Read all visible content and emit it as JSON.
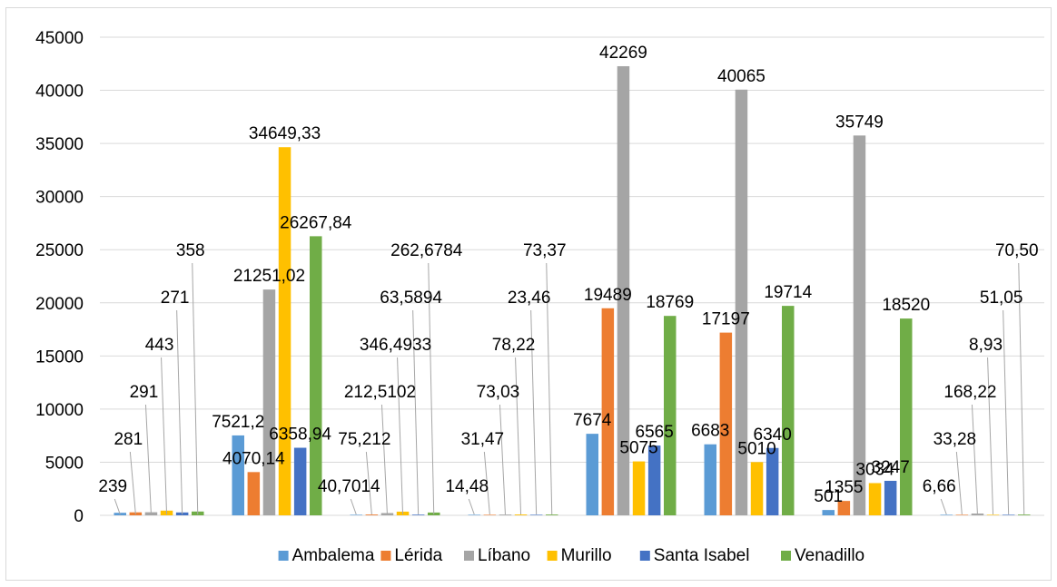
{
  "chart_data": {
    "type": "bar",
    "title": "",
    "xlabel": "",
    "ylabel": "",
    "ylim": [
      0,
      45000
    ],
    "yticks": [
      0,
      5000,
      10000,
      15000,
      20000,
      25000,
      30000,
      35000,
      40000,
      45000
    ],
    "grid": true,
    "legend_position": "bottom",
    "categories": [
      "",
      "",
      "",
      "",
      "",
      "",
      "",
      ""
    ],
    "series": [
      {
        "name": "Ambalema",
        "color": "#5b9bd5",
        "values": [
          239,
          7521.2,
          40.7014,
          14.48,
          7674,
          6683,
          501,
          6.66
        ],
        "labels": [
          "239",
          "7521,2",
          "40,7014",
          "14,48",
          "7674",
          "6683",
          "501",
          "6,66"
        ]
      },
      {
        "name": "Lérida",
        "color": "#ed7d31",
        "values": [
          281,
          4070.14,
          75.212,
          31.47,
          19489,
          17197,
          1355,
          33.28
        ],
        "labels": [
          "281",
          "4070,14",
          "75,212",
          "31,47",
          "19489",
          "17197",
          "1355",
          "33,28"
        ]
      },
      {
        "name": "Líbano",
        "color": "#a5a5a5",
        "values": [
          291,
          21251.02,
          212.5102,
          73.03,
          42269,
          40065,
          35749,
          168.22
        ],
        "labels": [
          "291",
          "21251,02",
          "212,5102",
          "73,03",
          "42269",
          "40065",
          "35749",
          "168,22"
        ]
      },
      {
        "name": "Murillo",
        "color": "#ffc000",
        "values": [
          443,
          34649.33,
          346.4933,
          78.22,
          5075,
          5010,
          3034,
          8.93
        ],
        "labels": [
          "443",
          "34649,33",
          "346,4933",
          "78,22",
          "5075",
          "5010",
          "3034",
          "8,93"
        ]
      },
      {
        "name": "Santa Isabel",
        "color": "#4472c4",
        "values": [
          271,
          6358.94,
          63.5894,
          23.46,
          6565,
          6340,
          3247,
          51.05
        ],
        "labels": [
          "271",
          "6358,94",
          "63,5894",
          "23,46",
          "6565",
          "6340",
          "3247",
          "51,05"
        ]
      },
      {
        "name": "Venadillo",
        "color": "#70ad47",
        "values": [
          358,
          26267.84,
          262.6784,
          73.37,
          18769,
          19714,
          18520,
          70.5
        ],
        "labels": [
          "358",
          "26267,84",
          "262,6784",
          "73,37",
          "18769",
          "19714",
          "18520",
          "70,50"
        ]
      }
    ]
  }
}
